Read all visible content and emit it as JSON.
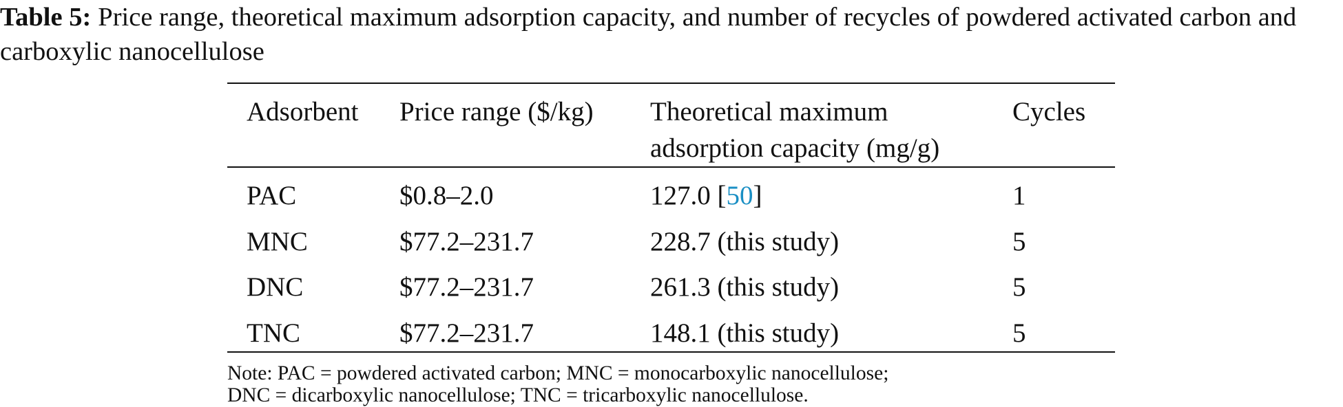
{
  "caption": {
    "label": "Table 5:",
    "text": "Price range, theoretical maximum adsorption capacity, and number of recycles of powdered activated carbon and carboxylic nanocellulose"
  },
  "table": {
    "header": [
      "Adsorbent",
      "Price range ($/kg)",
      "Theoretical maximum adsorption capacity (mg/g)",
      "Cycles"
    ],
    "rows": [
      [
        "PAC",
        "$0.8–2.0",
        [
          "127.0 [",
          "50",
          "]"
        ],
        "1"
      ],
      [
        "MNC",
        "$77.2–231.7",
        "228.7 (this study)",
        "5"
      ],
      [
        "DNC",
        "$77.2–231.7",
        "261.3 (this study)",
        "5"
      ],
      [
        "TNC",
        "$77.2–231.7",
        "148.1 (this study)",
        "5"
      ]
    ]
  },
  "note": [
    "Note: PAC = powdered activated carbon; MNC = monocarboxylic nanocellulose;",
    "DNC = dicarboxylic nanocellulose; TNC = tricarboxylic nanocellulose."
  ]
}
